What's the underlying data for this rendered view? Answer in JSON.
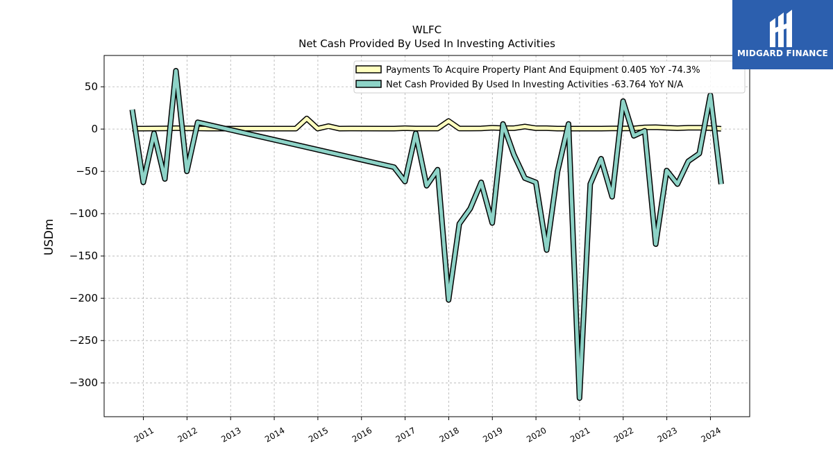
{
  "brand": {
    "name": "MIDGARD FINANCE",
    "logo_icon": "midgard-logo-icon"
  },
  "chart_data": {
    "type": "line",
    "title": "WLFC",
    "subtitle": "Net Cash Provided By Used In Investing Activities",
    "ylabel": "USDm",
    "xlabel": "",
    "ylim": [
      -340,
      87
    ],
    "xlim": [
      2010.1,
      2024.9
    ],
    "yticks": [
      50,
      0,
      -50,
      -100,
      -150,
      -200,
      -250,
      -300
    ],
    "ytick_labels": [
      "50",
      "0",
      "−50",
      "−100",
      "−150",
      "−200",
      "−250",
      "−300"
    ],
    "xticks": [
      2011,
      2012,
      2013,
      2014,
      2015,
      2016,
      2017,
      2018,
      2019,
      2020,
      2021,
      2022,
      2023,
      2024
    ],
    "xtick_labels": [
      "2011",
      "2012",
      "2013",
      "2014",
      "2015",
      "2016",
      "2017",
      "2018",
      "2019",
      "2020",
      "2021",
      "2022",
      "2023",
      "2024"
    ],
    "grid": true,
    "legend_position": "top-right",
    "series": [
      {
        "name": "Payments To Acquire Property Plant And Equipment  0.405 YoY -74.3%",
        "color": "#ffffbf",
        "x": [
          "2010-09-30",
          "2010-12-31",
          "2011-03-31",
          "2011-06-30",
          "2011-09-30",
          "2011-12-31",
          "2012-03-31",
          "2012-06-30",
          "2013-06-30",
          "2014-06-30",
          "2014-09-30",
          "2014-12-31",
          "2015-03-31",
          "2015-06-30",
          "2015-09-30",
          "2016-06-30",
          "2016-09-30",
          "2016-12-31",
          "2017-03-31",
          "2017-06-30",
          "2017-09-30",
          "2017-12-31",
          "2018-03-31",
          "2018-06-30",
          "2018-09-30",
          "2018-12-31",
          "2019-03-31",
          "2019-06-30",
          "2019-09-30",
          "2019-12-31",
          "2020-03-31",
          "2020-06-30",
          "2020-09-30",
          "2020-12-31",
          "2021-03-31",
          "2021-06-30",
          "2021-09-30",
          "2021-12-31",
          "2022-03-31",
          "2022-06-30",
          "2022-09-30",
          "2022-12-31",
          "2023-03-31",
          "2023-06-30",
          "2023-09-30",
          "2023-12-31",
          "2024-03-31"
        ],
        "values": [
          0.5,
          0.5,
          0.6,
          0.7,
          1.0,
          0.9,
          0.8,
          0.5,
          0.5,
          0.5,
          12.5,
          0.5,
          3.5,
          0.5,
          0.6,
          0.5,
          0.5,
          1.0,
          0.6,
          0.6,
          0.6,
          9.5,
          0.6,
          0.6,
          0.8,
          1.5,
          1.0,
          1.0,
          3.0,
          1.0,
          1.0,
          0.5,
          0.5,
          0.5,
          0.5,
          0.5,
          0.8,
          0.8,
          0.8,
          2.0,
          2.2,
          1.5,
          1.0,
          1.5,
          1.5,
          1.2,
          0.4
        ]
      },
      {
        "name": "Net Cash Provided By Used In Investing Activities  -63.764 YoY N/A",
        "color": "#8dd3c7",
        "x": [
          "2010-09-30",
          "2010-12-31",
          "2011-03-31",
          "2011-06-30",
          "2011-09-30",
          "2011-12-31",
          "2012-03-31",
          "2016-09-30",
          "2016-12-31",
          "2017-03-31",
          "2017-06-30",
          "2017-09-30",
          "2017-12-31",
          "2018-03-31",
          "2018-06-30",
          "2018-09-30",
          "2018-12-31",
          "2019-03-31",
          "2019-06-30",
          "2019-09-30",
          "2019-12-31",
          "2020-03-31",
          "2020-06-30",
          "2020-09-30",
          "2020-12-31",
          "2021-03-31",
          "2021-06-30",
          "2021-09-30",
          "2021-12-31",
          "2022-03-31",
          "2022-06-30",
          "2022-09-30",
          "2022-12-31",
          "2023-03-31",
          "2023-06-30",
          "2023-09-30",
          "2023-12-31",
          "2024-03-31"
        ],
        "values": [
          23,
          -63,
          -5,
          -59,
          69,
          -50,
          8,
          -45,
          -62,
          -5,
          -67,
          -48,
          -202,
          -112,
          -94,
          -63,
          -111,
          6,
          -30,
          -58,
          -63,
          -143,
          -50,
          6,
          -318,
          -65,
          -35,
          -80,
          33,
          -8,
          -2,
          -136,
          -49,
          -65,
          -38,
          -29,
          40,
          -65
        ]
      }
    ]
  }
}
